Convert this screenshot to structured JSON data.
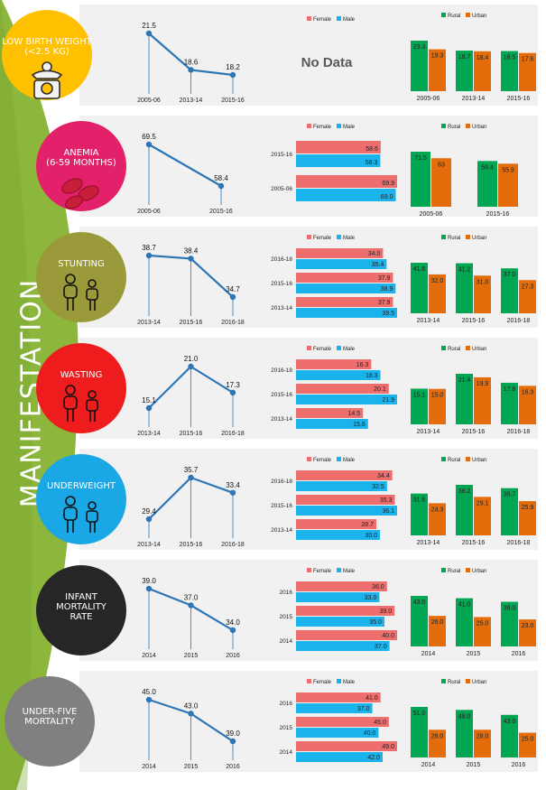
{
  "side_title": "MANIFESTATION",
  "colors": {
    "female": "#ee6e6e",
    "male": "#1ab3ec",
    "rural": "#00a651",
    "urban": "#e46c0a",
    "line": "#2e75b6"
  },
  "legend": {
    "female": "Female",
    "male": "Male",
    "rural": "Rural",
    "urban": "Urban"
  },
  "no_data": "No Data",
  "chart_data": [
    {
      "name": "LOW BIRTH WEIGHT (<2.5 KG)",
      "label_lines": [
        "LOW BIRTH WEIGHT",
        "(<2.5 KG)"
      ],
      "circle_color": "#ffc000",
      "icon": "baby-scale-icon",
      "trend": {
        "type": "line",
        "x": [
          "2005-06",
          "2013-14",
          "2015-16"
        ],
        "values": [
          21.5,
          18.6,
          18.2
        ]
      },
      "gender": null,
      "residence": {
        "type": "bar",
        "categories": [
          "2005-06",
          "2013-14",
          "2015-16"
        ],
        "rural": [
          23.3,
          18.7,
          18.5
        ],
        "urban": [
          19.3,
          18.4,
          17.6
        ]
      }
    },
    {
      "name": "ANEMIA (6-59 MONTHS)",
      "label_lines": [
        "ANEMIA",
        "(6-59 MONTHS)"
      ],
      "circle_color": "#e2216a",
      "icon": "blood-cells-icon",
      "trend": {
        "type": "line",
        "x": [
          "2005-06",
          "2015-16"
        ],
        "values": [
          69.5,
          58.4
        ]
      },
      "gender": {
        "type": "bar",
        "categories": [
          "2015-16",
          "2005-06"
        ],
        "female": [
          58.6,
          69.9
        ],
        "male": [
          58.3,
          69.0
        ]
      },
      "residence": {
        "type": "bar",
        "categories": [
          "2005-06",
          "2015-16"
        ],
        "rural": [
          71.5,
          59.4
        ],
        "urban": [
          63,
          55.9
        ]
      }
    },
    {
      "name": "STUNTING",
      "label_lines": [
        "STUNTING"
      ],
      "circle_color": "#9a9a3a",
      "icon": "children-icon",
      "trend": {
        "type": "line",
        "x": [
          "2013-14",
          "2015-16",
          "2016-18"
        ],
        "values": [
          38.7,
          38.4,
          34.7
        ]
      },
      "gender": {
        "type": "bar",
        "categories": [
          "2016-18",
          "2015-16",
          "2013-14"
        ],
        "female": [
          34.0,
          37.9,
          37.9
        ],
        "male": [
          35.4,
          38.9,
          39.5
        ]
      },
      "residence": {
        "type": "bar",
        "categories": [
          "2013-14",
          "2015-16",
          "2016-18"
        ],
        "rural": [
          41.6,
          41.2,
          37.0
        ],
        "urban": [
          32.0,
          31.0,
          27.3
        ]
      }
    },
    {
      "name": "WASTING",
      "label_lines": [
        "WASTING"
      ],
      "circle_color": "#ee1c1c",
      "icon": "children-icon",
      "trend": {
        "type": "line",
        "x": [
          "2013-14",
          "2015-16",
          "2016-18"
        ],
        "values": [
          15.1,
          21.0,
          17.3
        ]
      },
      "gender": {
        "type": "bar",
        "categories": [
          "2016-18",
          "2015-16",
          "2013-14"
        ],
        "female": [
          16.3,
          20.1,
          14.5
        ],
        "male": [
          18.3,
          21.9,
          15.6
        ]
      },
      "residence": {
        "type": "bar",
        "categories": [
          "2013-14",
          "2015-16",
          "2016-18"
        ],
        "rural": [
          15.1,
          21.4,
          17.6
        ],
        "urban": [
          15.0,
          19.9,
          16.3
        ]
      }
    },
    {
      "name": "UNDERWEIGHT",
      "label_lines": [
        "UNDERWEIGHT"
      ],
      "circle_color": "#1aa7e6",
      "icon": "children-icon",
      "trend": {
        "type": "line",
        "x": [
          "2013-14",
          "2015-16",
          "2016-18"
        ],
        "values": [
          29.4,
          35.7,
          33.4
        ]
      },
      "gender": {
        "type": "bar",
        "categories": [
          "2016-18",
          "2015-16",
          "2013-14"
        ],
        "female": [
          34.4,
          35.3,
          28.7
        ],
        "male": [
          32.5,
          36.1,
          30.0
        ]
      },
      "residence": {
        "type": "bar",
        "categories": [
          "2013-14",
          "2015-16",
          "2016-18"
        ],
        "rural": [
          31.6,
          38.2,
          35.7
        ],
        "urban": [
          24.3,
          29.1,
          25.9
        ]
      }
    },
    {
      "name": "INFANT MORTALITY RATE",
      "label_lines": [
        "INFANT",
        "MORTALITY",
        "RATE"
      ],
      "circle_color": "#262626",
      "icon": "",
      "trend": {
        "type": "line",
        "x": [
          "2014",
          "2015",
          "2016"
        ],
        "values": [
          39.0,
          37.0,
          34.0
        ]
      },
      "gender": {
        "type": "bar",
        "categories": [
          "2016",
          "2015",
          "2014"
        ],
        "female": [
          36.0,
          39.0,
          40.0
        ],
        "male": [
          33.0,
          35.0,
          37.0
        ]
      },
      "residence": {
        "type": "bar",
        "categories": [
          "2014",
          "2015",
          "2016"
        ],
        "rural": [
          43.0,
          41.0,
          38.0
        ],
        "urban": [
          26.0,
          25.0,
          23.0
        ]
      }
    },
    {
      "name": "UNDER-FIVE MORTALITY",
      "label_lines": [
        "UNDER-FIVE",
        "MORTALITY"
      ],
      "circle_color": "#808080",
      "icon": "",
      "trend": {
        "type": "line",
        "x": [
          "2014",
          "2015",
          "2016"
        ],
        "values": [
          45.0,
          43.0,
          39.0
        ]
      },
      "gender": {
        "type": "bar",
        "categories": [
          "2016",
          "2015",
          "2014"
        ],
        "female": [
          41.0,
          45.0,
          49.0
        ],
        "male": [
          37.0,
          40.0,
          42.0
        ]
      },
      "residence": {
        "type": "bar",
        "categories": [
          "2014",
          "2015",
          "2016"
        ],
        "rural": [
          51.0,
          48.0,
          43.0
        ],
        "urban": [
          28.0,
          28.0,
          25.0
        ]
      }
    }
  ]
}
